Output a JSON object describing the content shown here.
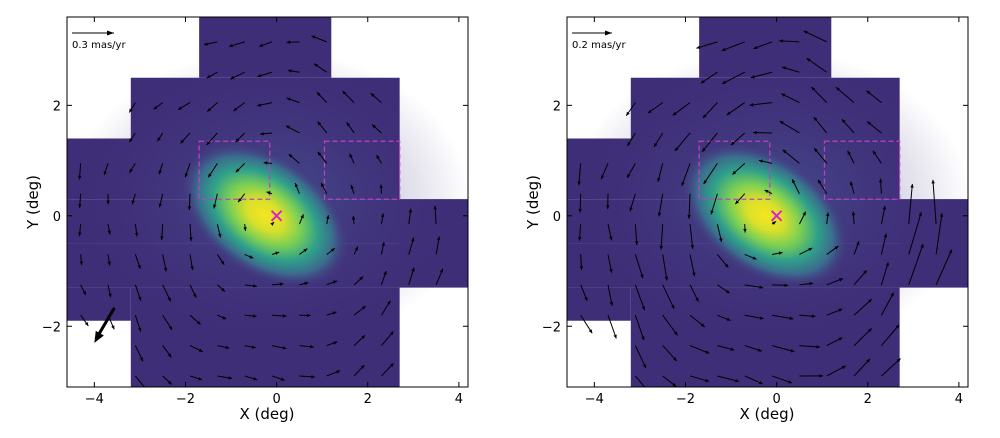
{
  "chart_data": [
    {
      "type": "quiver",
      "panel": "left",
      "xlabel": "X (deg)",
      "ylabel": "Y (deg)",
      "xlim": [
        -4.6,
        4.2
      ],
      "ylim": [
        -3.1,
        3.6
      ],
      "xticks": [
        -4,
        -2,
        0,
        2,
        4
      ],
      "yticks": [
        -2,
        0,
        2
      ],
      "xtick_labels": [
        "−4",
        "−2",
        "0",
        "2",
        "4"
      ],
      "ytick_labels": [
        "−2",
        "0",
        "2"
      ],
      "scale_bar": {
        "label": "0.3 mas/yr",
        "value": 0.3
      },
      "center_marker": {
        "x": 0.0,
        "y": 0.0,
        "symbol": "x",
        "color": "#e020c8"
      },
      "boxes": [
        {
          "x0": -1.7,
          "x1": -0.15,
          "y0": 0.3,
          "y1": 1.35,
          "color": "#c040c0"
        },
        {
          "x0": 1.05,
          "x1": 2.7,
          "y0": 0.3,
          "y1": 1.35,
          "color": "#c040c0"
        }
      ],
      "mean_motion_arrow": {
        "x": -4.0,
        "y": -2.3,
        "u": -0.15,
        "v": -0.28
      },
      "rotation_sense": "counter-clockwise",
      "vector_scale": 0.3
    },
    {
      "type": "quiver",
      "panel": "right",
      "xlabel": "X (deg)",
      "ylabel": "Y (deg)",
      "xlim": [
        -4.6,
        4.2
      ],
      "ylim": [
        -3.1,
        3.6
      ],
      "xticks": [
        -4,
        -2,
        0,
        2,
        4
      ],
      "yticks": [
        -2,
        0,
        2
      ],
      "xtick_labels": [
        "−4",
        "−2",
        "0",
        "2",
        "4"
      ],
      "ytick_labels": [
        "−2",
        "0",
        "2"
      ],
      "scale_bar": {
        "label": "0.2 mas/yr",
        "value": 0.2
      },
      "center_marker": {
        "x": 0.0,
        "y": 0.0,
        "symbol": "x",
        "color": "#e020c8"
      },
      "boxes": [
        {
          "x0": -1.7,
          "x1": -0.15,
          "y0": 0.3,
          "y1": 1.35,
          "color": "#c040c0"
        },
        {
          "x0": 1.05,
          "x1": 2.7,
          "y0": 0.3,
          "y1": 1.35,
          "color": "#c040c0"
        }
      ],
      "rotation_sense": "counter-clockwise",
      "vector_scale": 0.2
    }
  ],
  "colors": {
    "background_field": "#3e2d77",
    "density_low": "#46307c",
    "density_mid": "#2a8e8c",
    "density_high": "#f4e51f",
    "arrows": "#000000",
    "marker": "#e020c8"
  }
}
